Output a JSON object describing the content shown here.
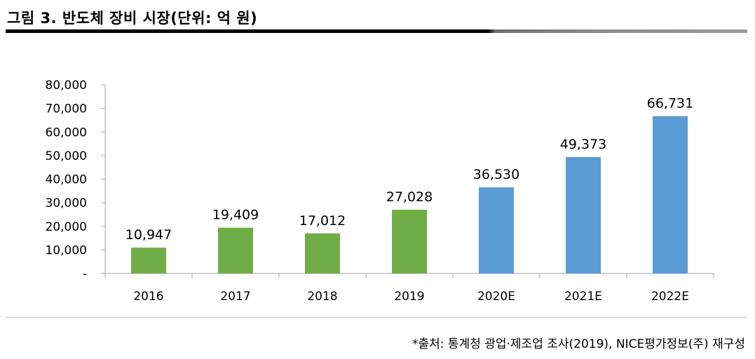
{
  "figure": {
    "title": "그림 3. 반도체 장비 시장(단위: 억 원)",
    "source": "*출처: 통계청 광업·제조업 조사(2019), NICE평가정보(주) 재구성"
  },
  "colors": {
    "actual": "#70ad47",
    "forecast": "#5b9bd5",
    "axis": "#a6a6a6"
  },
  "chart_data": {
    "type": "bar",
    "title": "반도체 장비 시장(단위: 억 원)",
    "xlabel": "",
    "ylabel": "",
    "categories": [
      "2016",
      "2017",
      "2018",
      "2019",
      "2020E",
      "2021E",
      "2022E"
    ],
    "values": [
      10947,
      19409,
      17012,
      27028,
      36530,
      49373,
      66731
    ],
    "value_labels": [
      "10,947",
      "19,409",
      "17,012",
      "27,028",
      "36,530",
      "49,373",
      "66,731"
    ],
    "series_type": [
      "actual",
      "actual",
      "actual",
      "actual",
      "forecast",
      "forecast",
      "forecast"
    ],
    "ylim": [
      0,
      80000
    ],
    "yticks": [
      0,
      10000,
      20000,
      30000,
      40000,
      50000,
      60000,
      70000,
      80000
    ],
    "ytick_labels": [
      "-",
      "10,000",
      "20,000",
      "30,000",
      "40,000",
      "50,000",
      "60,000",
      "70,000",
      "80,000"
    ],
    "grid": false,
    "legend": "none"
  }
}
